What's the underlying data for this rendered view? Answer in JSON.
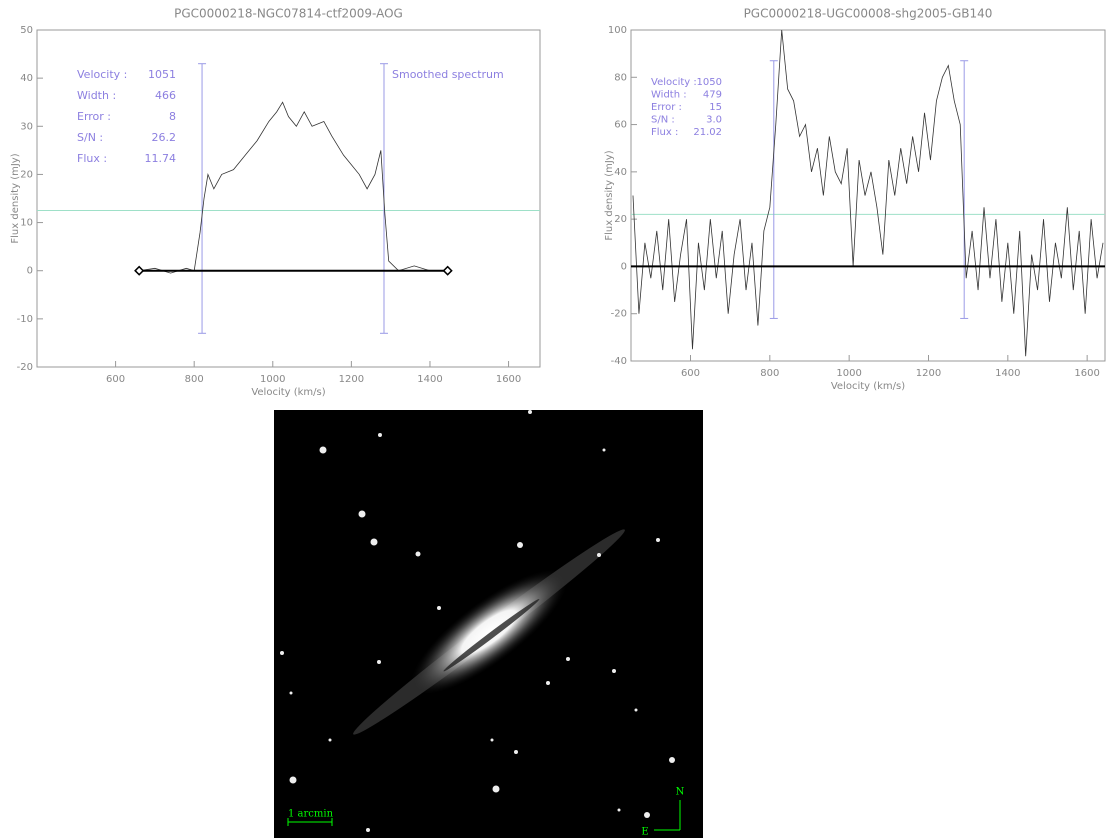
{
  "chart_data": [
    {
      "type": "line",
      "title": "PGC0000218-NGC07814-ctf2009-AOG",
      "xlabel": "Velocity (km/s)",
      "ylabel": "Flux density (mJy)",
      "xlim": [
        400,
        1680
      ],
      "ylim": [
        -20,
        50
      ],
      "xticks": [
        600,
        800,
        1000,
        1200,
        1400,
        1600
      ],
      "yticks": [
        -20,
        -10,
        0,
        10,
        20,
        30,
        40,
        50
      ],
      "color": "#333333",
      "x": [
        660,
        700,
        740,
        780,
        800,
        815,
        825,
        835,
        850,
        870,
        900,
        930,
        960,
        990,
        1010,
        1025,
        1040,
        1060,
        1080,
        1100,
        1130,
        1150,
        1180,
        1200,
        1220,
        1240,
        1260,
        1275,
        1285,
        1295,
        1320,
        1360,
        1400,
        1445
      ],
      "values": [
        0,
        0.5,
        -0.5,
        0.5,
        0,
        8,
        15,
        20,
        17,
        20,
        21,
        24,
        27,
        31,
        33,
        35,
        32,
        30,
        33,
        30,
        31,
        28,
        24,
        22,
        20,
        17,
        20,
        25,
        12,
        2,
        0,
        1,
        0,
        0
      ],
      "level": 12.5,
      "vlines": [
        820,
        1283
      ],
      "vline_range": [
        -13,
        43
      ],
      "baseline": [
        660,
        1445
      ],
      "stats": [
        {
          "label": "Velocity :",
          "value": "1051"
        },
        {
          "label": "Width :",
          "value": "466"
        },
        {
          "label": "Error :",
          "value": "8"
        },
        {
          "label": "S/N :",
          "value": "26.2"
        },
        {
          "label": "Flux :",
          "value": "11.74"
        }
      ],
      "annotation": "Smoothed spectrum"
    },
    {
      "type": "line",
      "title": "PGC0000218-UGC00008-shg2005-GB140",
      "xlabel": "Velocity (km/s)",
      "ylabel": "Flux density (mJy)",
      "xlim": [
        450,
        1645
      ],
      "ylim": [
        -40,
        100
      ],
      "xticks": [
        600,
        800,
        1000,
        1200,
        1400,
        1600
      ],
      "yticks": [
        -40,
        -20,
        0,
        20,
        40,
        60,
        80,
        100
      ],
      "color": "#333333",
      "x": [
        455,
        470,
        485,
        500,
        515,
        530,
        545,
        560,
        575,
        590,
        605,
        620,
        635,
        650,
        665,
        680,
        695,
        710,
        725,
        740,
        755,
        770,
        785,
        800,
        815,
        830,
        845,
        860,
        875,
        890,
        905,
        920,
        935,
        950,
        965,
        980,
        995,
        1010,
        1025,
        1040,
        1055,
        1070,
        1085,
        1100,
        1115,
        1130,
        1145,
        1160,
        1175,
        1190,
        1205,
        1220,
        1235,
        1250,
        1265,
        1280,
        1295,
        1310,
        1325,
        1340,
        1355,
        1370,
        1385,
        1400,
        1415,
        1430,
        1445,
        1460,
        1475,
        1490,
        1505,
        1520,
        1535,
        1550,
        1565,
        1580,
        1595,
        1610,
        1625,
        1640
      ],
      "values": [
        30,
        -20,
        10,
        -5,
        15,
        -10,
        20,
        -15,
        5,
        20,
        -35,
        10,
        -10,
        20,
        -5,
        15,
        -20,
        5,
        20,
        -10,
        10,
        -25,
        15,
        25,
        60,
        100,
        75,
        70,
        55,
        60,
        40,
        50,
        30,
        55,
        40,
        35,
        50,
        0,
        45,
        30,
        40,
        25,
        5,
        45,
        30,
        50,
        35,
        55,
        40,
        65,
        45,
        70,
        80,
        85,
        70,
        60,
        -5,
        15,
        -10,
        25,
        -5,
        20,
        -15,
        10,
        -20,
        15,
        -38,
        5,
        -10,
        20,
        -15,
        10,
        -5,
        25,
        -10,
        15,
        -20,
        20,
        -5,
        10
      ],
      "level": 22,
      "vlines": [
        810,
        1290
      ],
      "vline_range": [
        -22,
        87
      ],
      "baseline": [
        450,
        1645
      ],
      "stats": [
        {
          "label": "Velocity :",
          "value": "1050"
        },
        {
          "label": "Width :",
          "value": "479"
        },
        {
          "label": "Error :",
          "value": "15"
        },
        {
          "label": "S/N :",
          "value": "3.0"
        },
        {
          "label": "Flux :",
          "value": "21.02"
        }
      ]
    }
  ],
  "image": {
    "scale_label": "1 arcmin",
    "north": "N",
    "east": "E"
  }
}
